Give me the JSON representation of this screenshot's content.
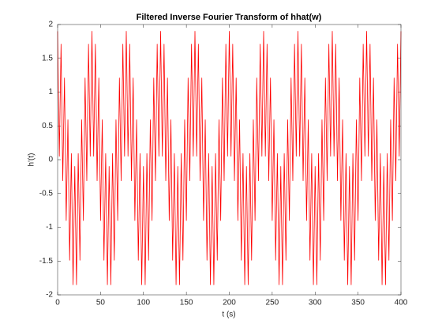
{
  "chart_data": {
    "type": "line",
    "title": "Filtered Inverse Fourier Transform of hhat(w)",
    "xlabel": "t (s)",
    "ylabel": "h'(t)",
    "color": "#ff0000",
    "xlim": [
      0,
      400
    ],
    "ylim": [
      -2,
      2
    ],
    "xticks": [
      0,
      50,
      100,
      150,
      200,
      250,
      300,
      350,
      400
    ],
    "yticks": [
      -2,
      -1.5,
      -1,
      -0.5,
      0,
      0.5,
      1,
      1.5,
      2
    ],
    "grid": false,
    "x": [
      0,
      1,
      2,
      3,
      4,
      5,
      6,
      7,
      8,
      9,
      10,
      11,
      12,
      13,
      14,
      15,
      16,
      17,
      18,
      19,
      20,
      21,
      22,
      23,
      24,
      25,
      26,
      27,
      28,
      29,
      30,
      31,
      32,
      33,
      34,
      35,
      36,
      37,
      38,
      39,
      40,
      41,
      42,
      43,
      44,
      45,
      46,
      47,
      48,
      49,
      50,
      51,
      52,
      53,
      54,
      55,
      56,
      57,
      58,
      59,
      60,
      61,
      62,
      63,
      64,
      65,
      66,
      67,
      68,
      69,
      70,
      71,
      72,
      73,
      74,
      75,
      76,
      77,
      78,
      79,
      80,
      81,
      82,
      83,
      84,
      85,
      86,
      87,
      88,
      89,
      90,
      91,
      92,
      93,
      94,
      95,
      96,
      97,
      98,
      99,
      100,
      101,
      102,
      103,
      104,
      105,
      106,
      107,
      108,
      109,
      110,
      111,
      112,
      113,
      114,
      115,
      116,
      117,
      118,
      119,
      120,
      121,
      122,
      123,
      124,
      125,
      126,
      127,
      128,
      129,
      130,
      131,
      132,
      133,
      134,
      135,
      136,
      137,
      138,
      139,
      140,
      141,
      142,
      143,
      144,
      145,
      146,
      147,
      148,
      149,
      150,
      151,
      152,
      153,
      154,
      155,
      156,
      157,
      158,
      159,
      160,
      161,
      162,
      163,
      164,
      165,
      166,
      167,
      168,
      169,
      170,
      171,
      172,
      173,
      174,
      175,
      176,
      177,
      178,
      179,
      180,
      181,
      182,
      183,
      184,
      185,
      186,
      187,
      188,
      189,
      190,
      191,
      192,
      193,
      194,
      195,
      196,
      197,
      198,
      199,
      200,
      201,
      202,
      203,
      204,
      205,
      206,
      207,
      208,
      209,
      210,
      211,
      212,
      213,
      214,
      215,
      216,
      217,
      218,
      219,
      220,
      221,
      222,
      223,
      224,
      225,
      226,
      227,
      228,
      229,
      230,
      231,
      232,
      233,
      234,
      235,
      236,
      237,
      238,
      239,
      240,
      241,
      242,
      243,
      244,
      245,
      246,
      247,
      248,
      249,
      250,
      251,
      252,
      253,
      254,
      255,
      256,
      257,
      258,
      259,
      260,
      261,
      262,
      263,
      264,
      265,
      266,
      267,
      268,
      269,
      270,
      271,
      272,
      273,
      274,
      275,
      276,
      277,
      278,
      279,
      280,
      281,
      282,
      283,
      284,
      285,
      286,
      287,
      288,
      289,
      290,
      291,
      292,
      293,
      294,
      295,
      296,
      297,
      298,
      299,
      300,
      301,
      302,
      303,
      304,
      305,
      306,
      307,
      308,
      309,
      310,
      311,
      312,
      313,
      314,
      315,
      316,
      317,
      318,
      319,
      320,
      321,
      322,
      323,
      324,
      325,
      326,
      327,
      328,
      329,
      330,
      331,
      332,
      333,
      334,
      335,
      336,
      337,
      338,
      339,
      340,
      341,
      342,
      343,
      344,
      345,
      346,
      347,
      348,
      349,
      350,
      351,
      352,
      353,
      354,
      355,
      356,
      357,
      358,
      359,
      360,
      361,
      362,
      363,
      364,
      365,
      366,
      367,
      368,
      369,
      370,
      371,
      372,
      373,
      374,
      375,
      376,
      377,
      378,
      379,
      380,
      381,
      382,
      383,
      384,
      385,
      386,
      387,
      388,
      389,
      390,
      391,
      392,
      393,
      394,
      395,
      396,
      397,
      398,
      399,
      400
    ],
    "values": [
      1.9,
      0.988,
      0.051,
      0.891,
      1.709,
      0.707,
      -0.312,
      0.454,
      1.209,
      0.156,
      -0.9,
      -0.156,
      0.591,
      -0.454,
      -1.488,
      -0.707,
      0.091,
      -0.891,
      -1.851,
      -0.988,
      -0.1,
      -0.988,
      -1.851,
      -0.891,
      0.091,
      -0.707,
      -1.488,
      -0.454,
      0.591,
      -0.156,
      -0.9,
      0.156,
      1.209,
      0.454,
      -0.312,
      0.707,
      1.709,
      0.891,
      0.051,
      0.988,
      1.9,
      0.988,
      0.051,
      0.891,
      1.709,
      0.707,
      -0.312,
      0.454,
      1.209,
      0.156,
      -0.9,
      -0.156,
      0.591,
      -0.454,
      -1.488,
      -0.707,
      0.091,
      -0.891,
      -1.851,
      -0.988,
      -0.1,
      -0.988,
      -1.851,
      -0.891,
      0.091,
      -0.707,
      -1.488,
      -0.454,
      0.591,
      -0.156,
      -0.9,
      0.156,
      1.209,
      0.454,
      -0.312,
      0.707,
      1.709,
      0.891,
      0.051,
      0.988,
      1.9,
      0.988,
      0.051,
      0.891,
      1.709,
      0.707,
      -0.312,
      0.454,
      1.209,
      0.156,
      -0.9,
      -0.156,
      0.591,
      -0.454,
      -1.488,
      -0.707,
      0.091,
      -0.891,
      -1.851,
      -0.988,
      -0.1,
      -0.988,
      -1.851,
      -0.891,
      0.091,
      -0.707,
      -1.488,
      -0.454,
      0.591,
      -0.156,
      -0.9,
      0.156,
      1.209,
      0.454,
      -0.312,
      0.707,
      1.709,
      0.891,
      0.051,
      0.988,
      1.9,
      0.988,
      0.051,
      0.891,
      1.709,
      0.707,
      -0.312,
      0.454,
      1.209,
      0.156,
      -0.9,
      -0.156,
      0.591,
      -0.454,
      -1.488,
      -0.707,
      0.091,
      -0.891,
      -1.851,
      -0.988,
      -0.1,
      -0.988,
      -1.851,
      -0.891,
      0.091,
      -0.707,
      -1.488,
      -0.454,
      0.591,
      -0.156,
      -0.9,
      0.156,
      1.209,
      0.454,
      -0.312,
      0.707,
      1.709,
      0.891,
      0.051,
      0.988,
      1.9,
      0.988,
      0.051,
      0.891,
      1.709,
      0.707,
      -0.312,
      0.454,
      1.209,
      0.156,
      -0.9,
      -0.156,
      0.591,
      -0.454,
      -1.488,
      -0.707,
      0.091,
      -0.891,
      -1.851,
      -0.988,
      -0.1,
      -0.988,
      -1.851,
      -0.891,
      0.091,
      -0.707,
      -1.488,
      -0.454,
      0.591,
      -0.156,
      -0.9,
      0.156,
      1.209,
      0.454,
      -0.312,
      0.707,
      1.709,
      0.891,
      0.051,
      0.988,
      1.9,
      0.988,
      0.051,
      0.891,
      1.709,
      0.707,
      -0.312,
      0.454,
      1.209,
      0.156,
      -0.9,
      -0.156,
      0.591,
      -0.454,
      -1.488,
      -0.707,
      0.091,
      -0.891,
      -1.851,
      -0.988,
      -0.1,
      -0.988,
      -1.851,
      -0.891,
      0.091,
      -0.707,
      -1.488,
      -0.454,
      0.591,
      -0.156,
      -0.9,
      0.156,
      1.209,
      0.454,
      -0.312,
      0.707,
      1.709,
      0.891,
      0.051,
      0.988,
      1.9,
      0.988,
      0.051,
      0.891,
      1.709,
      0.707,
      -0.312,
      0.454,
      1.209,
      0.156,
      -0.9,
      -0.156,
      0.591,
      -0.454,
      -1.488,
      -0.707,
      0.091,
      -0.891,
      -1.851,
      -0.988,
      -0.1,
      -0.988,
      -1.851,
      -0.891,
      0.091,
      -0.707,
      -1.488,
      -0.454,
      0.591,
      -0.156,
      -0.9,
      0.156,
      1.209,
      0.454,
      -0.312,
      0.707,
      1.709,
      0.891,
      0.051,
      0.988,
      1.9,
      0.988,
      0.051,
      0.891,
      1.709,
      0.707,
      -0.312,
      0.454,
      1.209,
      0.156,
      -0.9,
      -0.156,
      0.591,
      -0.454,
      -1.488,
      -0.707,
      0.091,
      -0.891,
      -1.851,
      -0.988,
      -0.1,
      -0.988,
      -1.851,
      -0.891,
      0.091,
      -0.707,
      -1.488,
      -0.454,
      0.591,
      -0.156,
      -0.9,
      0.156,
      1.209,
      0.454,
      -0.312,
      0.707,
      1.709,
      0.891,
      0.051,
      0.988,
      1.9,
      0.988,
      0.051,
      0.891,
      1.709,
      0.707,
      -0.312,
      0.454,
      1.209,
      0.156,
      -0.9,
      -0.156,
      0.591,
      -0.454,
      -1.488,
      -0.707,
      0.091,
      -0.891,
      -1.851,
      -0.988,
      -0.1,
      -0.988,
      -1.851,
      -0.891,
      0.091,
      -0.707,
      -1.488,
      -0.454,
      0.591,
      -0.156,
      -0.9,
      0.156,
      1.209,
      0.454,
      -0.312,
      0.707,
      1.709,
      0.891,
      0.051,
      0.988,
      1.9,
      0.988,
      0.051,
      0.891,
      1.709,
      0.707,
      -0.312,
      0.454,
      1.209,
      0.156,
      -0.9,
      -0.156,
      0.591,
      -0.454,
      -1.488,
      -0.707,
      0.091,
      -0.891,
      -1.851,
      -0.988,
      -0.1,
      -0.988,
      -1.851,
      -0.891,
      0.091,
      -0.707,
      -1.488,
      -0.454,
      0.591,
      -0.156,
      -0.9,
      0.156,
      1.209,
      0.454,
      -0.312,
      0.707,
      1.709,
      0.891,
      0.051,
      0.988,
      1.9
    ]
  }
}
